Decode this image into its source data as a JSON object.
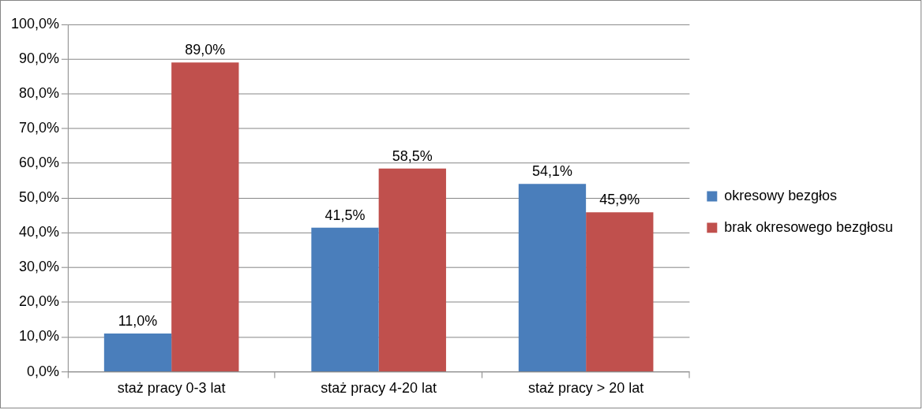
{
  "chart_data": {
    "type": "bar",
    "categories": [
      "staż pracy 0-3 lat",
      "staż pracy 4-20 lat",
      "staż pracy > 20 lat"
    ],
    "series": [
      {
        "name": "okresowy bezgłos",
        "color": "#4a7ebb",
        "values": [
          11.0,
          41.5,
          54.1
        ],
        "value_labels": [
          "11,0%",
          "41,5%",
          "54,1%"
        ]
      },
      {
        "name": "brak okresowego bezgłosu",
        "color": "#c0504d",
        "values": [
          89.0,
          58.5,
          45.9
        ],
        "value_labels": [
          "89,0%",
          "58,5%",
          "45,9%"
        ]
      }
    ],
    "ylim": [
      0,
      100
    ],
    "yticks": [
      {
        "value": 0,
        "label": "0,0%"
      },
      {
        "value": 10,
        "label": "10,0%"
      },
      {
        "value": 20,
        "label": "20,0%"
      },
      {
        "value": 30,
        "label": "30,0%"
      },
      {
        "value": 40,
        "label": "40,0%"
      },
      {
        "value": 50,
        "label": "50,0%"
      },
      {
        "value": 60,
        "label": "60,0%"
      },
      {
        "value": 70,
        "label": "70,0%"
      },
      {
        "value": 80,
        "label": "80,0%"
      },
      {
        "value": 90,
        "label": "90,0%"
      },
      {
        "value": 100,
        "label": "100,0%"
      }
    ],
    "grid": "y",
    "legend": "right"
  }
}
